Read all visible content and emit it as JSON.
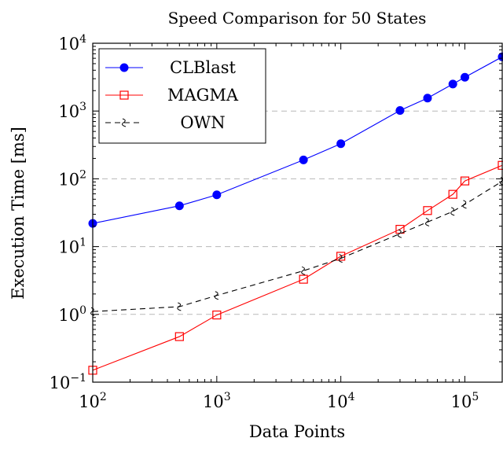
{
  "chart_data": {
    "type": "line",
    "title": "Speed Comparison for 50 States",
    "xlabel": "Data Points",
    "ylabel": "Execution Time [ms]",
    "xscale": "log",
    "yscale": "log",
    "xlim": [
      100,
      200000
    ],
    "ylim": [
      0.1,
      10000
    ],
    "x_ticks": [
      {
        "base": "10",
        "exp": "2",
        "value": 100
      },
      {
        "base": "10",
        "exp": "3",
        "value": 1000
      },
      {
        "base": "10",
        "exp": "4",
        "value": 10000
      },
      {
        "base": "10",
        "exp": "5",
        "value": 100000
      }
    ],
    "y_ticks": [
      {
        "base": "10",
        "exp": "−1",
        "value": 0.1
      },
      {
        "base": "10",
        "exp": "0",
        "value": 1
      },
      {
        "base": "10",
        "exp": "1",
        "value": 10
      },
      {
        "base": "10",
        "exp": "2",
        "value": 100
      },
      {
        "base": "10",
        "exp": "3",
        "value": 1000
      },
      {
        "base": "10",
        "exp": "4",
        "value": 10000
      }
    ],
    "y_tick_labels": [
      "10⁻¹",
      "10⁰",
      "10¹",
      "10²",
      "10³",
      "10⁴"
    ],
    "x_tick_labels": [
      "10²",
      "10³",
      "10⁴",
      "10⁵"
    ],
    "grid": "horizontal-dashed",
    "legend_position": "top-left",
    "series": [
      {
        "name": "CLBlast",
        "color": "#0000ff",
        "marker": "filled-circle",
        "line": "solid",
        "x": [
          100,
          500,
          1000,
          5000,
          10000,
          30000,
          50000,
          80000,
          100000,
          200000
        ],
        "y": [
          22,
          40,
          58,
          190,
          330,
          1020,
          1550,
          2500,
          3150,
          6300
        ]
      },
      {
        "name": "MAGMA",
        "color": "#ff0000",
        "marker": "open-square",
        "line": "solid",
        "x": [
          100,
          500,
          1000,
          5000,
          10000,
          30000,
          50000,
          80000,
          100000,
          200000
        ],
        "y": [
          0.15,
          0.47,
          0.98,
          3.3,
          7.2,
          18,
          34,
          59,
          93,
          158
        ]
      },
      {
        "name": "OWN",
        "color": "#000000",
        "marker": "tilde",
        "line": "dashed",
        "x": [
          100,
          500,
          1000,
          5000,
          10000,
          30000,
          50000,
          80000,
          100000,
          200000
        ],
        "y": [
          1.1,
          1.3,
          1.9,
          4.4,
          6.7,
          15.5,
          23,
          33,
          42,
          92
        ]
      }
    ]
  }
}
